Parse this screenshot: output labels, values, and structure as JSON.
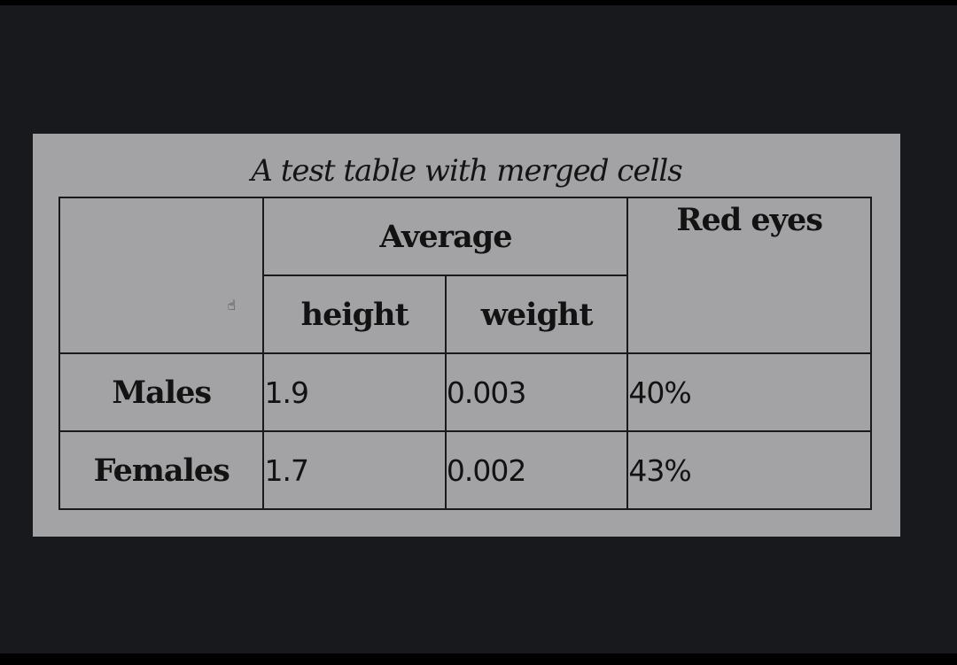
{
  "table": {
    "caption": "A test table with merged cells",
    "header": {
      "group_label": "Average",
      "sub_labels": [
        "height",
        "weight"
      ],
      "red_eyes_label": "Red eyes"
    },
    "rows": [
      {
        "label": "Males",
        "height": "1.9",
        "weight": "0.003",
        "red_eyes": "40%"
      },
      {
        "label": "Females",
        "height": "1.7",
        "weight": "0.002",
        "red_eyes": "43%"
      }
    ]
  },
  "cursor": {
    "icon": "hand-pointer-icon"
  },
  "colors": {
    "background": "#18191c",
    "panel": "#a3a3a5",
    "border": "#1a1a1a",
    "text": "#121212"
  }
}
